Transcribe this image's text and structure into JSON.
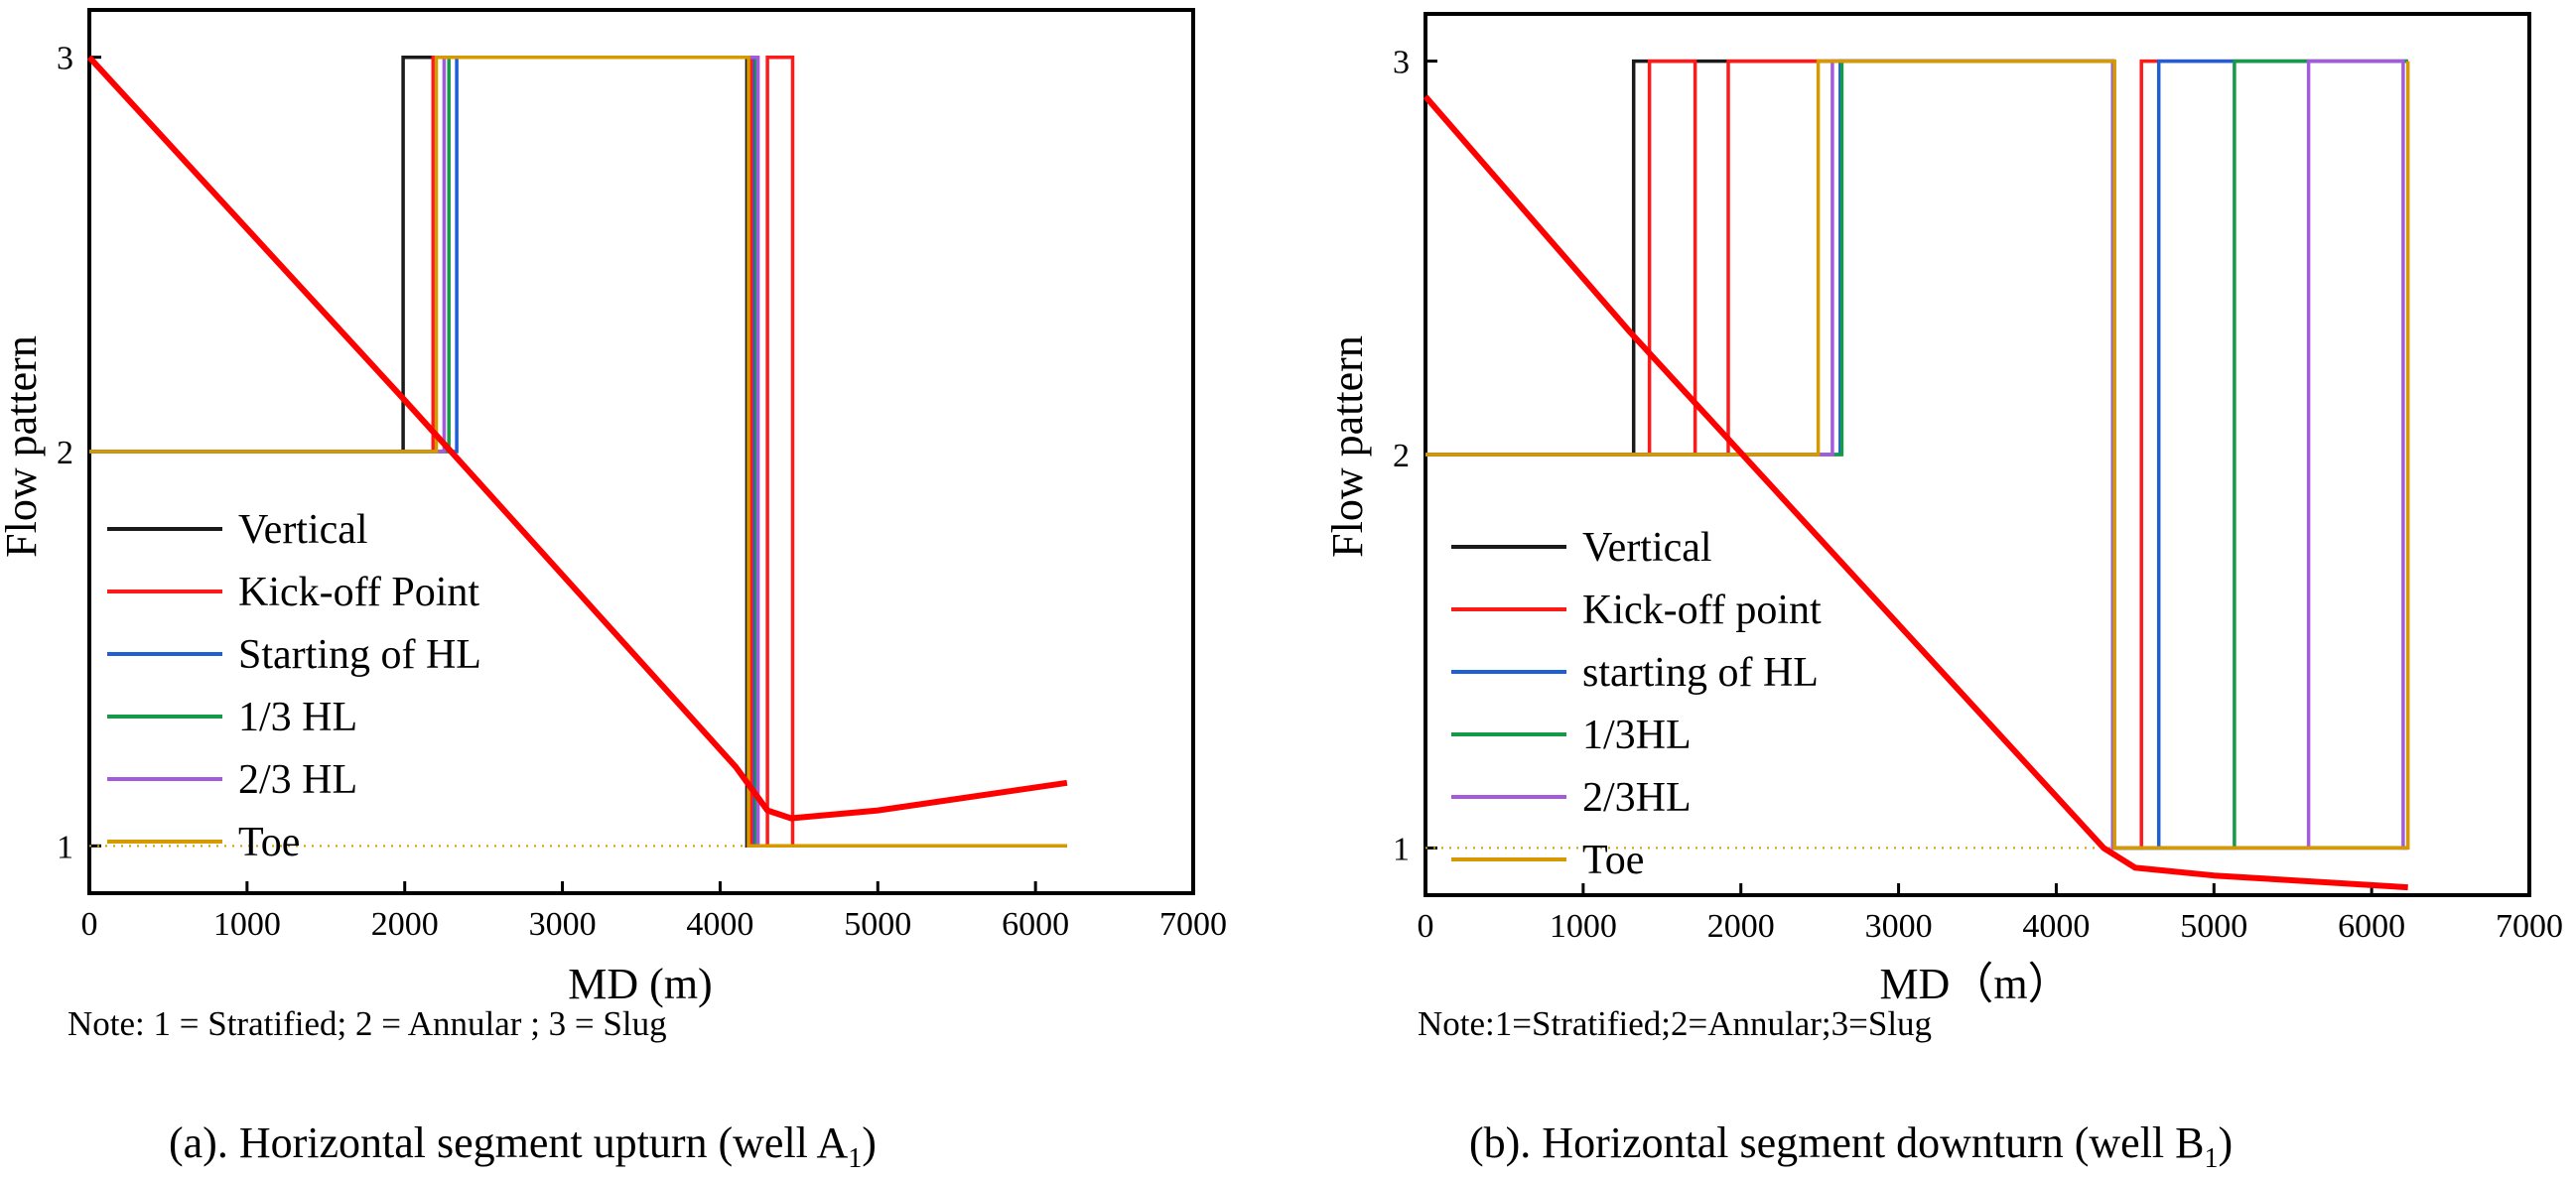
{
  "colors": {
    "vertical": "#1a1a1a",
    "kickoff": "#ff1a1a",
    "starting": "#1f5fd6",
    "third": "#159a4a",
    "twothird": "#a35bdc",
    "toe": "#d49a00",
    "trend": "#ff0000"
  },
  "chart_data": [
    {
      "type": "line",
      "id": "a",
      "caption": "(a). Horizontal segment upturn (well A",
      "caption_sub": "1",
      "caption_end": ")",
      "note": "Note: 1 = Stratified; 2 = Annular ; 3 = Slug",
      "xlabel": "MD (m)",
      "ylabel": "Flow pattern",
      "xlim": [
        0,
        7000
      ],
      "ylim": [
        0.88,
        3.12
      ],
      "xticks": [
        "0",
        "1000",
        "2000",
        "3000",
        "4000",
        "5000",
        "6000",
        "7000"
      ],
      "yticks": [
        "1",
        "2",
        "3"
      ],
      "legend": [
        "Vertical",
        "Kick-off Point",
        "Starting of HL",
        "1/3 HL",
        "2/3 HL",
        "Toe"
      ],
      "series": [
        {
          "name": "Vertical",
          "color_key": "vertical",
          "x": [
            0,
            1990,
            1990,
            4170,
            4170,
            6200
          ],
          "y": [
            2,
            2,
            3,
            3,
            1,
            1
          ]
        },
        {
          "name": "Kick-off Point",
          "color_key": "kickoff",
          "x": [
            0,
            2180,
            2180,
            4200,
            4200,
            4300,
            4300,
            4460,
            4460,
            6200
          ],
          "y": [
            2,
            2,
            3,
            3,
            1,
            1,
            3,
            3,
            1,
            1
          ]
        },
        {
          "name": "Starting of HL",
          "color_key": "starting",
          "x": [
            0,
            2330,
            2330,
            4220,
            4220,
            6200
          ],
          "y": [
            2,
            2,
            3,
            3,
            1,
            1
          ]
        },
        {
          "name": "1/3 HL",
          "color_key": "third",
          "x": [
            0,
            2280,
            2280,
            4230,
            4230,
            6200
          ],
          "y": [
            2,
            2,
            3,
            3,
            1,
            1
          ]
        },
        {
          "name": "2/3 HL",
          "color_key": "twothird",
          "x": [
            0,
            2250,
            2250,
            4240,
            4240,
            6200
          ],
          "y": [
            2,
            2,
            3,
            3,
            1,
            1
          ]
        },
        {
          "name": "Toe",
          "color_key": "toe",
          "x": [
            0,
            2200,
            2200,
            4180,
            4180,
            6200
          ],
          "y": [
            2,
            2,
            3,
            3,
            1,
            1
          ]
        }
      ],
      "trend": {
        "color_key": "trend",
        "x": [
          0,
          2000,
          4100,
          4300,
          4450,
          5000,
          6200
        ],
        "y": [
          3,
          2.13,
          1.2,
          1.09,
          1.07,
          1.09,
          1.16
        ]
      }
    },
    {
      "type": "line",
      "id": "b",
      "caption": "(b). Horizontal segment downturn (well B",
      "caption_sub": "1",
      "caption_end": ")",
      "note": "Note:1=Stratified;2=Annular;3=Slug",
      "xlabel": "MD（m）",
      "ylabel": "Flow pattern",
      "xlim": [
        0,
        7000
      ],
      "ylim": [
        0.88,
        3.12
      ],
      "xticks": [
        "0",
        "1000",
        "2000",
        "3000",
        "4000",
        "5000",
        "6000",
        "7000"
      ],
      "yticks": [
        "1",
        "2",
        "3"
      ],
      "legend": [
        "Vertical",
        "Kick-off point",
        "starting of HL",
        "1/3HL",
        "2/3HL",
        "Toe"
      ],
      "series": [
        {
          "name": "Vertical",
          "color_key": "vertical",
          "x": [
            0,
            1320,
            1320,
            4360,
            4360,
            6230
          ],
          "y": [
            2,
            2,
            3,
            3,
            1,
            1
          ]
        },
        {
          "name": "Kick-off point",
          "color_key": "kickoff",
          "x": [
            0,
            1420,
            1420,
            1710,
            1710,
            1920,
            1920,
            4360,
            4360,
            4540,
            4540,
            6230
          ],
          "y": [
            2,
            2,
            3,
            3,
            2,
            2,
            3,
            3,
            1,
            1,
            3,
            3
          ]
        },
        {
          "name": "starting of HL",
          "color_key": "starting",
          "x": [
            0,
            2630,
            2630,
            4360,
            4360,
            4650,
            4650,
            6230
          ],
          "y": [
            2,
            2,
            3,
            3,
            1,
            1,
            3,
            3
          ]
        },
        {
          "name": "1/3HL",
          "color_key": "third",
          "x": [
            0,
            2640,
            2640,
            4360,
            4360,
            5130,
            5130,
            6230
          ],
          "y": [
            2,
            2,
            3,
            3,
            1,
            1,
            3,
            3
          ]
        },
        {
          "name": "2/3HL",
          "color_key": "twothird",
          "x": [
            0,
            2580,
            2580,
            4360,
            4360,
            5600,
            5600,
            6200,
            6200,
            6230
          ],
          "y": [
            2,
            2,
            3,
            3,
            1,
            1,
            3,
            3,
            1,
            1
          ]
        },
        {
          "name": "Toe",
          "color_key": "toe",
          "x": [
            0,
            2490,
            2490,
            4370,
            4370,
            6230,
            6230
          ],
          "y": [
            2,
            2,
            3,
            3,
            1,
            1,
            3
          ]
        }
      ],
      "trend": {
        "color_key": "trend",
        "x": [
          0,
          1300,
          4300,
          4500,
          5000,
          6230
        ],
        "y": [
          2.91,
          2.31,
          1.0,
          0.95,
          0.93,
          0.9
        ]
      }
    }
  ]
}
